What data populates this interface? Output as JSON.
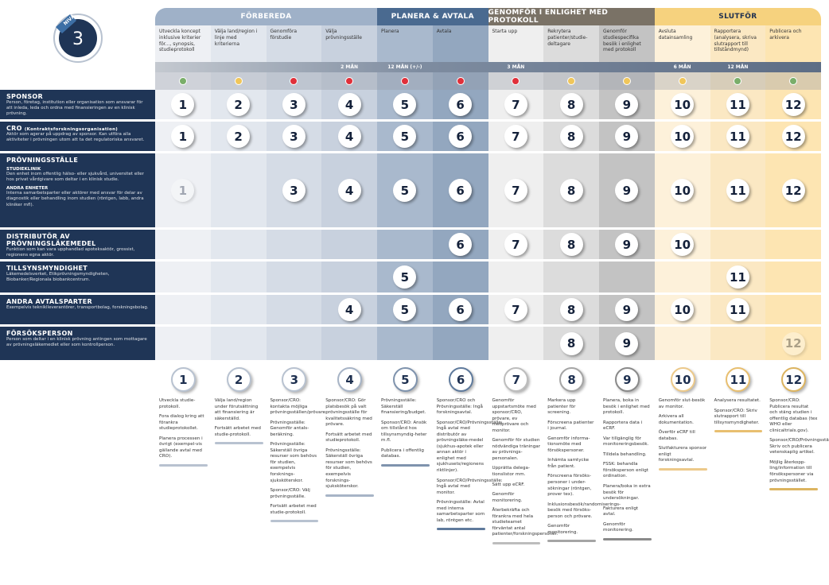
{
  "logo": {
    "level_label": "NIVÅ",
    "level": "3"
  },
  "phases": [
    {
      "name": "FÖRBEREDA",
      "span": 4,
      "color": "#9fb1c8"
    },
    {
      "name": "PLANERA & AVTALA",
      "span": 2,
      "color": "#4a6a90"
    },
    {
      "name": "GENOMFÖR I ENLIGHET MED PROTOKOLL",
      "span": 3,
      "color": "#7a7266"
    },
    {
      "name": "SLUTFÖR",
      "span": 3,
      "color": "#f6d27e",
      "text_color": "#1d2f4f"
    }
  ],
  "columns": [
    {
      "n": "1",
      "step": "Utveckla koncept inklusive kriterier för..., synopsis, studieprotokoll",
      "duration": "",
      "status": "#7aae6a",
      "bg": "#eef0f4",
      "accent": "#b8c2d0",
      "notes": [
        "Utveckla studie-protokoll.",
        "Fora dialog kring att förankra studieprotokollet.",
        "Planera processen i övrigt (exempel-vis gällande avtal med CRO)."
      ]
    },
    {
      "n": "2",
      "step": "Välja land/region i linje med kriterierna",
      "duration": "",
      "status": "#f0c65a",
      "bg": "#e2e7ee",
      "accent": "#b8c2d0",
      "notes": [
        "Välja land/region under förutsättning att finansiering är säkerställd.",
        "Fortsätt arbetet med studie-protokoll."
      ]
    },
    {
      "n": "3",
      "step": "Genomföra förstudie",
      "duration": "",
      "status": "#e0303a",
      "bg": "#d5dce6",
      "accent": "#b8c2d0",
      "notes": [
        "Sponsor/CRO: kontakta möjliga prövningsställen/prövare.",
        "Prövningsställe: Genomför antals-beräkning.",
        "Prövningsställe: Säkerställ övriga resurser som behövs för studien, exempelvis forsknings-sjuksköterskor.",
        "Sponsor/CRO: Välj prövningsställe.",
        "Fortsätt arbetet med studie-protokoll."
      ]
    },
    {
      "n": "4",
      "step": "Välja prövningsställe",
      "duration": "2 MÅN",
      "status": "#e0303a",
      "bg": "#c8d1de",
      "accent": "#a7b4c6",
      "notes": [
        "Sponsor/CRO: Gör platsbesök på valt prövningsställe för kvalitetssäkring med prövare.",
        "Fortsätt arbetet med studieprotokoll.",
        "Prövningsställe: Säkerställ övriga resurser som behövs för studien, exempelvis forsknings-sjuksköterskor."
      ]
    },
    {
      "n": "5",
      "step": "Planera",
      "duration": "12 MÅN (+/-)",
      "status": "#e0303a",
      "bg": "#a9b9cd",
      "accent": "#7f93ad",
      "notes": [
        "Prövningsställe: Säkerställ finansiering/budget.",
        "Sponsor/CRO: Ansök om tillstånd hos tillsynsmyndig-heter m.fl.",
        "Publicera i offentlig databas."
      ]
    },
    {
      "n": "6",
      "step": "Avtala",
      "duration": "",
      "status": "#e0303a",
      "bg": "#93a7bf",
      "accent": "#5f7a9c",
      "notes": [
        "Sponsor/CRO och Prövningsställe: Ingå forskningsavtal.",
        "Sponsor/CRO/Prövningsställe: Ingå avtal med distributör av prövningsläke-medel (sjukhus-apotek eller annan aktör i enlighet med sjukhusets/regionens riktlinjer).",
        "Sponsor/CRO/Prövningsställe: Ingå avtal med monitor.",
        "Prövningsställe: Avtal med interna samarbetsparter som lab, röntgen etc."
      ]
    },
    {
      "n": "7",
      "step": "Starta upp",
      "duration": "3 MÅN",
      "status": "#e0303a",
      "bg": "#efefef",
      "accent": "#bdbdbd",
      "notes": [
        "Genomför uppstartsmöte med sponsor/CRO, prövare, ev medprövare och monitor.",
        "Genomför för studien nödvändiga träningar av prövnings-personalen.",
        "Upprätta delega-tionslistor mm.",
        "Sätt upp eCRF.",
        "Genomför monitorering.",
        "Återbekräfta och förankra med hela studieteamet förväntat antal patienter/forskningspersoner."
      ]
    },
    {
      "n": "8",
      "step": "Rekrytera patienter/studie-deltagare",
      "duration": "",
      "status": "#f0c65a",
      "bg": "#dcdcdc",
      "accent": "#a5a5a5",
      "notes": [
        "Markera upp patienter för screening.",
        "Förscreena patienter i journal.",
        "Genomför informa-tionsmöte med försökspersoner.",
        "Inhämta samtycke från patient.",
        "Förscreena försöks-personer i under-sökningar (röntgen, prover tex).",
        "Inklusionsbesök/randomiserings-besök med försöks-person och prövare.",
        "Genomför monitorering."
      ]
    },
    {
      "n": "9",
      "step": "Genomför studiespecifika besök i enlighet med protokoll",
      "duration": "",
      "status": "#f0c65a",
      "bg": "#c3c3c3",
      "accent": "#8a8a8a",
      "notes": [
        "Planera, boka in besök i enlighet med protokoll.",
        "Rapportera data i eCRF.",
        "Var tillgänglig för monitoreringsbesök.",
        "Tilldela behandling.",
        "FSSK: behandla försöksperson enligt ordination.",
        "Planera/boka in extra besök för undersökningar.",
        "Fakturera enligt avtal.",
        "Genomför monitorering."
      ]
    },
    {
      "n": "10",
      "step": "Avsluta datainsamling",
      "duration": "6 MÅN",
      "status": "#f0c65a",
      "bg": "#fdf1da",
      "accent": "#ecc98a",
      "notes": [
        "Genomför slut-besök av monitor.",
        "Arkivera all dokumentation.",
        "Överför eCRF till databas.",
        "Slutfakturera sponsor enligt forskningsavtal."
      ]
    },
    {
      "n": "11",
      "step": "Rapportera (analysera, skriva slutrapport till tillståndmynd)",
      "duration": "12 MÅN",
      "status": "#7aae6a",
      "bg": "#fbe8c3",
      "accent": "#e8bf70",
      "notes": [
        "Analysera resultatet.",
        "Sponsor/CRO: Skriv slutrapport till tillsynsmyndigheter."
      ]
    },
    {
      "n": "12",
      "step": "Publicera och arkivera",
      "duration": "",
      "status": "#7aae6a",
      "bg": "#fde5b2",
      "accent": "#dcb460",
      "notes": [
        "Sponsor/CRO: Publicera resultat och stäng studien i offentlig databas (tex WHO eller clinicaltrials.gov).",
        "Sponsor/CRO/Prövningsställe: Skriv och publicera vetenskaplig artikel.",
        "Möjlig återkopp-ling/information till försökspersoner via prövningsstället."
      ]
    }
  ],
  "actors": [
    {
      "title": "SPONSOR",
      "title_note": "",
      "desc": "Person, företag, institution eller organisation som ansvarar för att inleda, leda och ordna med finansieringen av en klinisk prövning.",
      "present": [
        1,
        2,
        3,
        4,
        5,
        6,
        7,
        8,
        9,
        10,
        11,
        12
      ],
      "faded": []
    },
    {
      "title": "CRO",
      "title_note": "(Kontraktsforskningsorganisation)",
      "desc": "Aktör som agerar på uppdrag av sponsor. Kan utföra alla aktiviteter i prövningen utom att ta det regulatoriska ansvaret.",
      "present": [
        1,
        2,
        3,
        4,
        5,
        6,
        7,
        8,
        9,
        10,
        11,
        12
      ],
      "faded": []
    },
    {
      "title": "PRÖVNINGSSTÄLLE",
      "title_note": "",
      "sub": [
        {
          "h": "STUDIEKLINIK",
          "p": "Den enhet inom offentlig hälso- eller sjukvård, universitet eller hos privat vårdgivare som deltar i en klinisk studie."
        },
        {
          "h": "ANDRA ENHETER",
          "p": "Interna samarbetsparter eller aktörer med ansvar för delar av diagnostik eller behandling inom studien (röntgen, labb, andra kliniker mfl)."
        }
      ],
      "desc": "",
      "present": [
        1,
        3,
        4,
        5,
        6,
        7,
        8,
        9,
        10,
        11,
        12
      ],
      "faded": [
        1
      ]
    },
    {
      "title": "DISTRIBUTÖR AV PRÖVNINGSLÄKEMEDEL",
      "title_note": "",
      "desc": "Funktion som kan vara upphandlad apoteksaktör, grossist, regionens egna aktör.",
      "present": [
        6,
        7,
        8,
        9,
        10
      ],
      "faded": []
    },
    {
      "title": "TILLSYNSMYNDIGHET",
      "title_note": "",
      "desc": "Läkemedelsverket, Etikprövningsmyndigheten, Biobanker/Regionala biobankcentrum.",
      "present": [
        5,
        11
      ],
      "faded": []
    },
    {
      "title": "ANDRA AVTALSPARTER",
      "title_note": "",
      "desc": "Exempelvis tekniklleverantörer, transportbolag, forskningsbolag.",
      "present": [
        4,
        5,
        6,
        7,
        8,
        9,
        10,
        11
      ],
      "faded": []
    },
    {
      "title": "FÖRSÖKSPERSON",
      "title_note": "",
      "desc": "Person som deltar i en klinisk prövning antingen som mottagare av prövningsläkemedlet eller som kontrollperson.",
      "present": [
        8,
        9,
        12
      ],
      "faded": [
        12
      ]
    }
  ]
}
